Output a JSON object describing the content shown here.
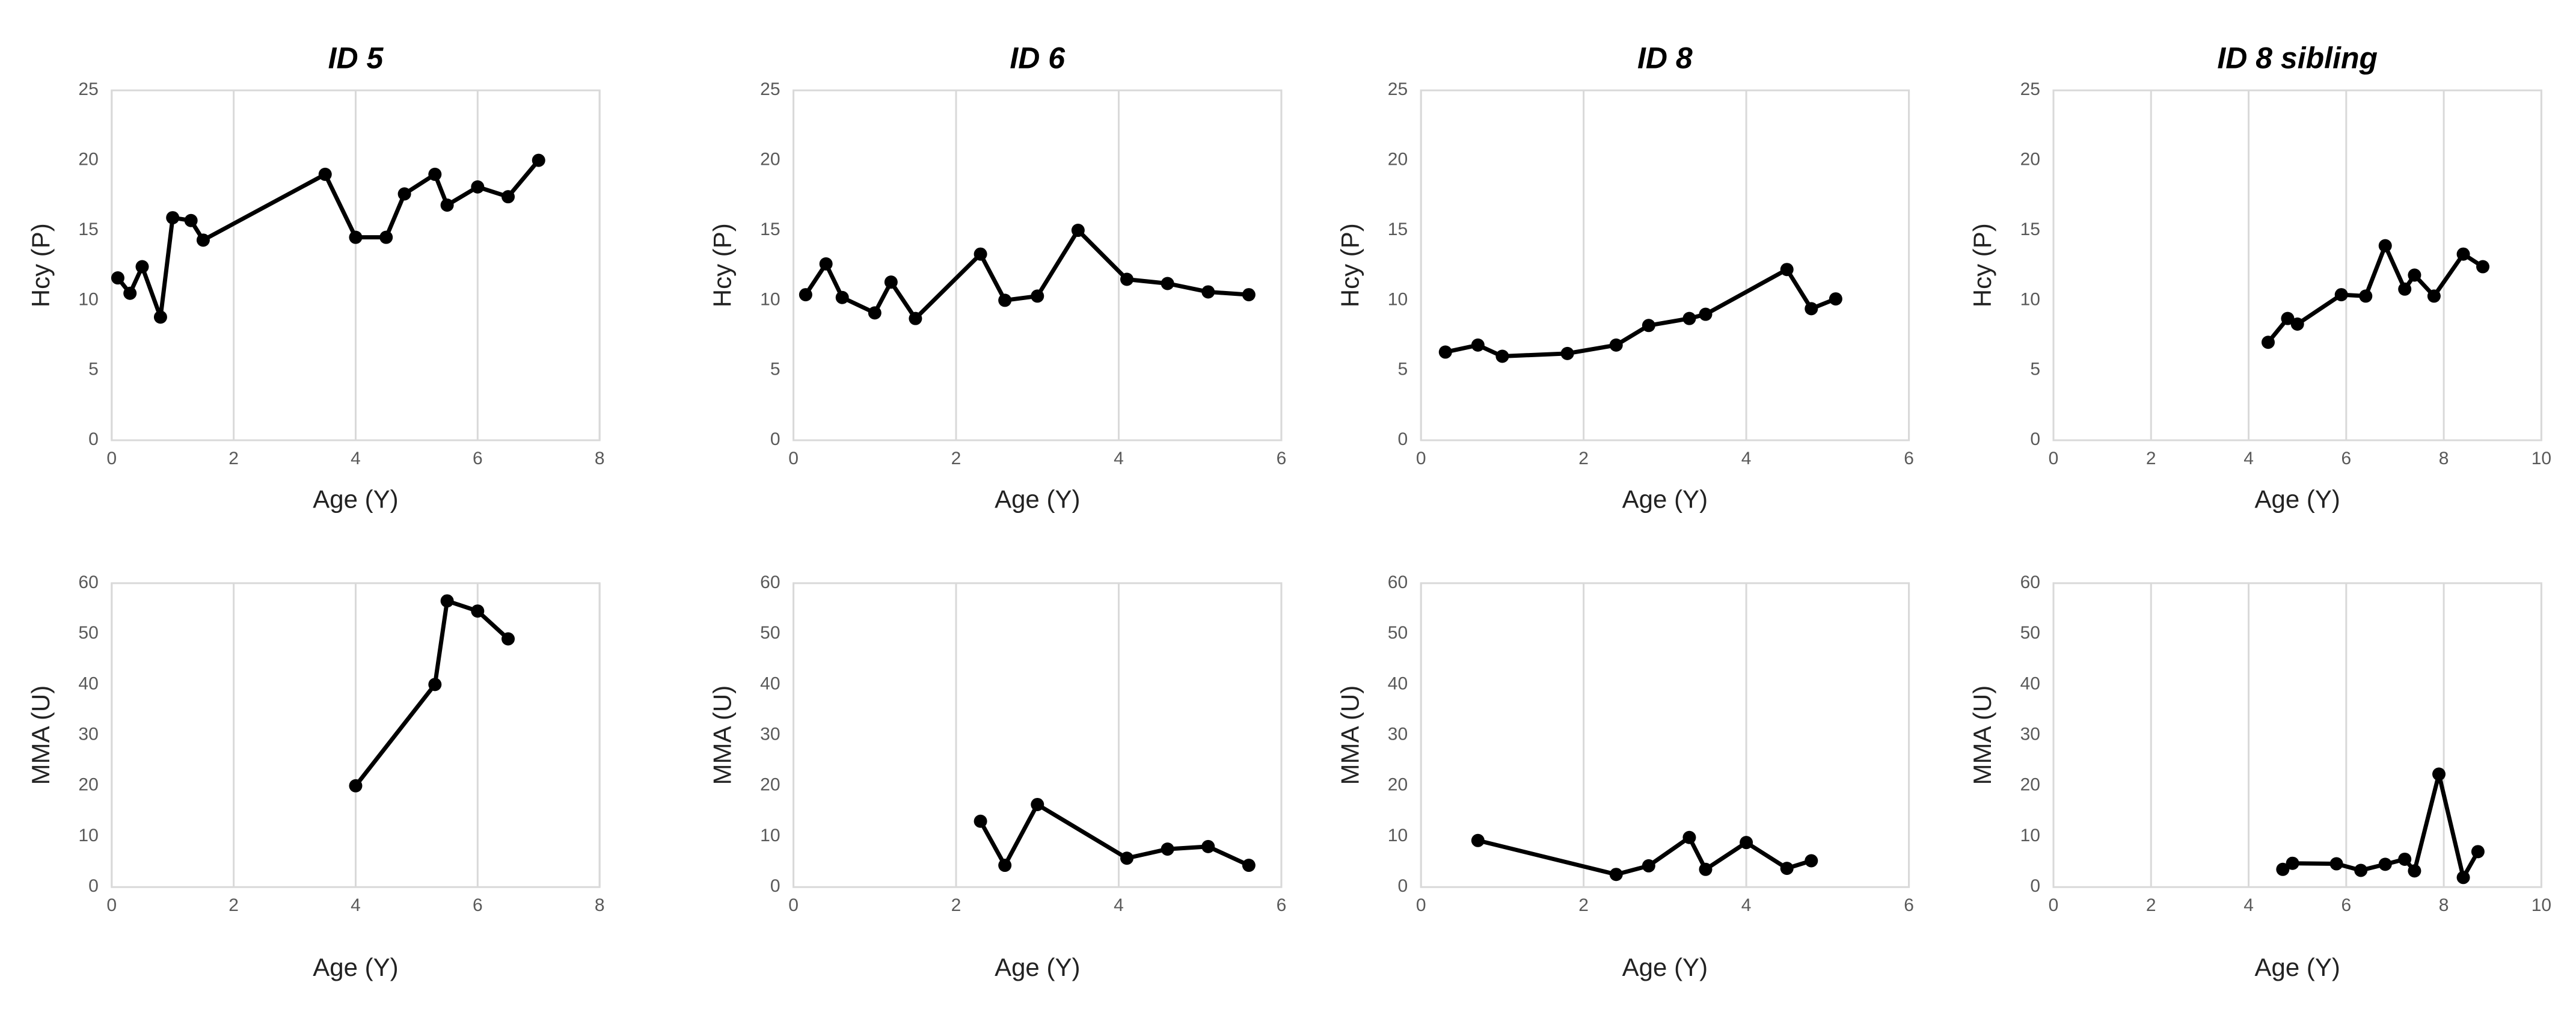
{
  "chart_data": [
    {
      "type": "line",
      "title": "ID 5",
      "xlabel": "Age (Y)",
      "ylabel": "Hcy (P)",
      "color": "#000000",
      "grid": "x",
      "xlim": [
        0,
        8
      ],
      "xticks": [
        0,
        2,
        4,
        6,
        8
      ],
      "ylim": [
        0,
        25
      ],
      "yticks": [
        0,
        5,
        10,
        15,
        20,
        25
      ],
      "x": [
        0.1,
        0.3,
        0.5,
        0.8,
        1.0,
        1.3,
        1.5,
        3.5,
        4.0,
        4.5,
        4.8,
        5.3,
        5.5,
        6.0,
        6.5,
        7.0
      ],
      "values": [
        11.6,
        10.5,
        12.4,
        8.8,
        15.9,
        15.7,
        14.3,
        19,
        14.5,
        14.5,
        17.6,
        19,
        16.8,
        18.1,
        17.4,
        20
      ]
    },
    {
      "type": "line",
      "title": "ID 6",
      "xlabel": "Age (Y)",
      "ylabel": "Hcy (P)",
      "color": "#000000",
      "grid": "x",
      "xlim": [
        0,
        6
      ],
      "xticks": [
        0,
        2,
        4,
        6
      ],
      "ylim": [
        0,
        25
      ],
      "yticks": [
        0,
        5,
        10,
        15,
        20,
        25
      ],
      "x": [
        0.15,
        0.4,
        0.6,
        1.0,
        1.2,
        1.5,
        2.3,
        2.6,
        3.0,
        3.5,
        4.1,
        4.6,
        5.1,
        5.6
      ],
      "values": [
        10.4,
        12.6,
        10.2,
        9.1,
        11.3,
        8.7,
        13.3,
        10.0,
        10.3,
        15,
        11.5,
        11.2,
        10.6,
        10.4
      ]
    },
    {
      "type": "line",
      "title": "ID 8",
      "xlabel": "Age (Y)",
      "ylabel": "Hcy (P)",
      "color": "#000000",
      "grid": "x",
      "xlim": [
        0,
        6
      ],
      "xticks": [
        0,
        2,
        4,
        6
      ],
      "ylim": [
        0,
        25
      ],
      "yticks": [
        0,
        5,
        10,
        15,
        20,
        25
      ],
      "x": [
        0.3,
        0.7,
        1.0,
        1.8,
        2.4,
        2.8,
        3.3,
        3.5,
        4.5,
        4.8,
        5.1
      ],
      "values": [
        6.3,
        6.8,
        6.0,
        6.2,
        6.8,
        8.2,
        8.7,
        9.0,
        12.2,
        9.4,
        10.1
      ]
    },
    {
      "type": "line",
      "title": "ID 8 sibling",
      "xlabel": "Age (Y)",
      "ylabel": "Hcy (P)",
      "color": "#000000",
      "grid": "x",
      "xlim": [
        0,
        10
      ],
      "xticks": [
        0,
        2,
        4,
        6,
        8,
        10
      ],
      "ylim": [
        0,
        25
      ],
      "yticks": [
        0,
        5,
        10,
        15,
        20,
        25
      ],
      "x": [
        4.4,
        4.8,
        5.0,
        5.9,
        6.4,
        6.8,
        7.2,
        7.4,
        7.8,
        8.4,
        8.8
      ],
      "values": [
        7.0,
        8.7,
        8.3,
        10.4,
        10.3,
        13.9,
        10.8,
        11.8,
        10.3,
        13.3,
        12.4
      ]
    },
    {
      "type": "line",
      "xlabel": "Age (Y)",
      "ylabel": "MMA (U)",
      "color": "#000000",
      "grid": "x",
      "xlim": [
        0,
        8
      ],
      "xticks": [
        0,
        2,
        4,
        6,
        8
      ],
      "ylim": [
        0,
        60
      ],
      "yticks": [
        0,
        10,
        20,
        30,
        40,
        50,
        60
      ],
      "x": [
        4.0,
        5.3,
        5.5,
        6.0,
        6.5
      ],
      "values": [
        20,
        40,
        56.5,
        54.5,
        49
      ]
    },
    {
      "type": "line",
      "xlabel": "Age (Y)",
      "ylabel": "MMA (U)",
      "color": "#000000",
      "grid": "x",
      "xlim": [
        0,
        6
      ],
      "xticks": [
        0,
        2,
        4,
        6
      ],
      "ylim": [
        0,
        60
      ],
      "yticks": [
        0,
        10,
        20,
        30,
        40,
        50,
        60
      ],
      "x": [
        2.3,
        2.6,
        3.0,
        4.1,
        4.6,
        5.1,
        5.6
      ],
      "values": [
        13,
        4.3,
        16.3,
        5.7,
        7.5,
        8,
        4.3
      ]
    },
    {
      "type": "line",
      "xlabel": "Age (Y)",
      "ylabel": "MMA (U)",
      "color": "#000000",
      "grid": "x",
      "xlim": [
        0,
        6
      ],
      "xticks": [
        0,
        2,
        4,
        6
      ],
      "ylim": [
        0,
        60
      ],
      "yticks": [
        0,
        10,
        20,
        30,
        40,
        50,
        60
      ],
      "x": [
        0.7,
        2.4,
        2.8,
        3.3,
        3.5,
        4.0,
        4.5,
        4.8
      ],
      "values": [
        9.2,
        2.5,
        4.2,
        9.8,
        3.5,
        8.8,
        3.7,
        5.2
      ]
    },
    {
      "type": "line",
      "xlabel": "Age (Y)",
      "ylabel": "MMA (U)",
      "color": "#000000",
      "grid": "x",
      "xlim": [
        0,
        10
      ],
      "xticks": [
        0,
        2,
        4,
        6,
        8,
        10
      ],
      "ylim": [
        0,
        60
      ],
      "yticks": [
        0,
        10,
        20,
        30,
        40,
        50,
        60
      ],
      "x": [
        4.7,
        4.9,
        5.8,
        6.3,
        6.8,
        7.2,
        7.4,
        7.9,
        8.4,
        8.7
      ],
      "values": [
        3.5,
        4.7,
        4.6,
        3.3,
        4.5,
        5.5,
        3.2,
        22.3,
        1.9,
        7
      ]
    }
  ]
}
